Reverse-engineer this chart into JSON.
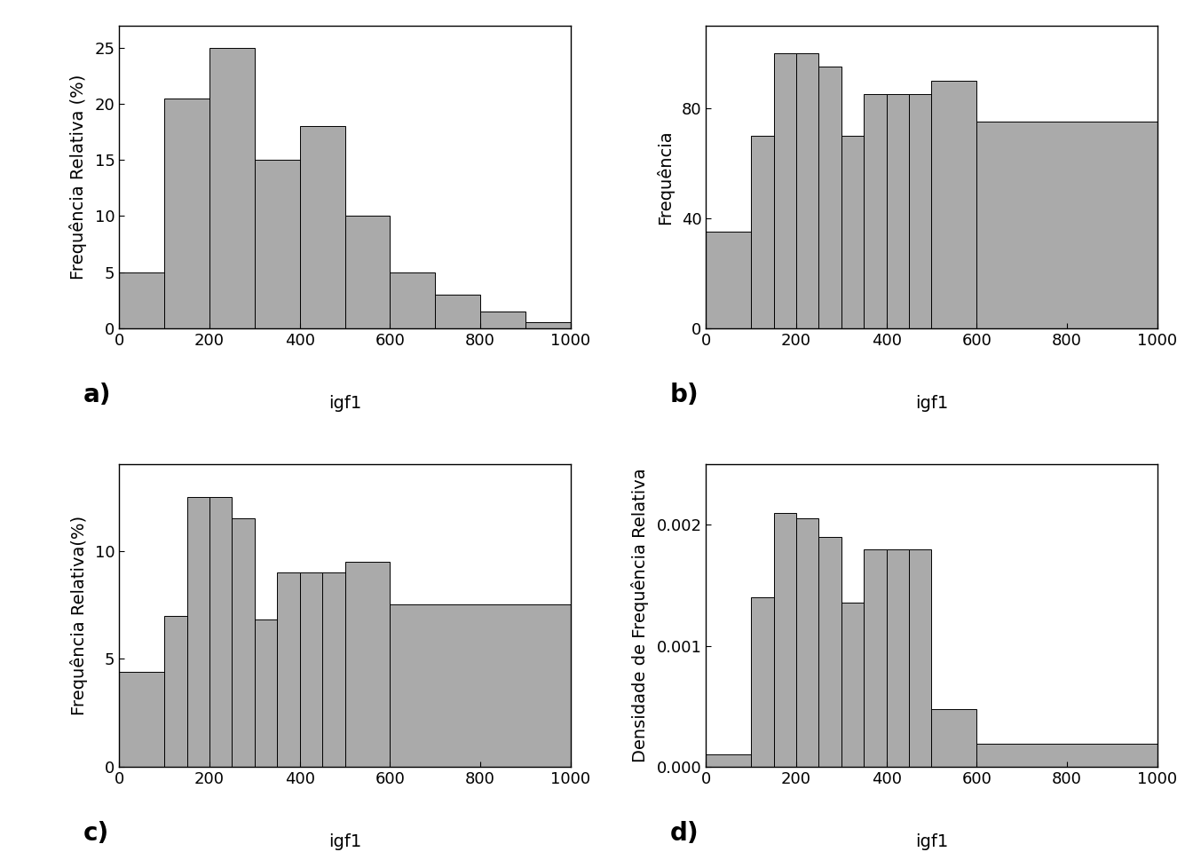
{
  "plot_a": {
    "ylabel": "Frequência Relativa (%)",
    "xlabel": "igf1",
    "label": "a)",
    "bin_edges": [
      0,
      100,
      200,
      300,
      400,
      500,
      600,
      700,
      800,
      900,
      1000
    ],
    "heights": [
      5.0,
      20.5,
      25.0,
      15.0,
      18.0,
      10.0,
      5.0,
      3.0,
      1.5,
      0.5
    ],
    "ylim": [
      0,
      27
    ],
    "yticks": [
      0,
      5,
      10,
      15,
      20,
      25
    ],
    "xlim": [
      0,
      1000
    ],
    "xticks": [
      0,
      200,
      400,
      600,
      800,
      1000
    ]
  },
  "plot_b": {
    "ylabel": "Frequência",
    "xlabel": "igf1",
    "label": "b)",
    "bin_edges": [
      0,
      100,
      150,
      200,
      250,
      300,
      350,
      400,
      450,
      500,
      600,
      1000
    ],
    "heights": [
      35,
      70,
      100,
      100,
      95,
      70,
      85,
      85,
      85,
      90,
      75
    ],
    "ylim": [
      0,
      110
    ],
    "yticks": [
      0,
      40,
      80
    ],
    "xlim": [
      0,
      1000
    ],
    "xticks": [
      0,
      200,
      400,
      600,
      800,
      1000
    ]
  },
  "plot_c": {
    "ylabel": "Frequência Relativa(%)",
    "xlabel": "igf1",
    "label": "c)",
    "bin_edges": [
      0,
      100,
      150,
      200,
      250,
      300,
      350,
      400,
      450,
      500,
      600,
      1000
    ],
    "heights": [
      4.4,
      7.0,
      12.5,
      12.5,
      11.5,
      6.8,
      9.0,
      9.0,
      9.0,
      9.5,
      7.5
    ],
    "ylim": [
      0,
      14
    ],
    "yticks": [
      0,
      5,
      10
    ],
    "xlim": [
      0,
      1000
    ],
    "xticks": [
      0,
      200,
      400,
      600,
      800,
      1000
    ]
  },
  "plot_d": {
    "ylabel": "Densidade de Frequência Relativa",
    "xlabel": "igf1",
    "label": "d)",
    "bin_edges": [
      0,
      100,
      150,
      200,
      250,
      300,
      350,
      400,
      450,
      500,
      600,
      1000
    ],
    "heights": [
      0.0001,
      0.0014,
      0.0021,
      0.00205,
      0.0019,
      0.00136,
      0.0018,
      0.0018,
      0.0018,
      0.000475,
      0.0001875
    ],
    "ylim": [
      0,
      0.0025
    ],
    "yticks": [
      0.0,
      0.001,
      0.002
    ],
    "xlim": [
      0,
      1000
    ],
    "xticks": [
      0,
      200,
      400,
      600,
      800,
      1000
    ]
  },
  "bar_color": "#aaaaaa",
  "bar_edgecolor": "#000000",
  "background_color": "#ffffff",
  "font_size": 14,
  "tick_fontsize": 13,
  "label_fontsize": 20
}
